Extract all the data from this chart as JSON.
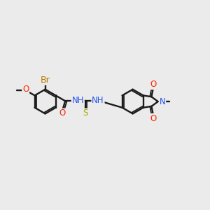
{
  "bg": "#ebebeb",
  "lc": "#1a1a1a",
  "bw": 1.7,
  "ilw": 1.3,
  "ioff": 0.085,
  "fs": 8.5,
  "r": 0.7,
  "ac_O": "#ff2200",
  "ac_N": "#2255ee",
  "ac_S": "#aaaa00",
  "ac_Br": "#bb7700",
  "fig": [
    3.0,
    3.0
  ],
  "dpi": 100,
  "xlim": [
    -1.0,
    11.0
  ],
  "ylim": [
    0.5,
    9.5
  ]
}
